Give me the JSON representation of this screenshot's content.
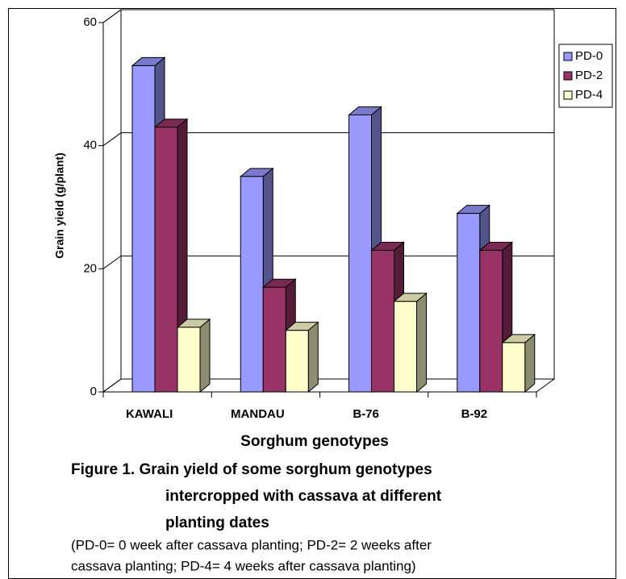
{
  "chart_data": {
    "type": "bar3d",
    "y_label": "Grain yield (g/plant)",
    "x_label": "Sorghum genotypes",
    "categories": [
      "KAWALI",
      "MANDAU",
      "B-76",
      "B-92"
    ],
    "series": [
      {
        "name": "PD-0",
        "color": "#9999ff",
        "values": [
          53,
          35,
          45,
          29
        ]
      },
      {
        "name": "PD-2",
        "color": "#993366",
        "values": [
          43,
          17,
          23,
          23
        ]
      },
      {
        "name": "PD-4",
        "color": "#ffffcc",
        "values": [
          10.5,
          10,
          14.7,
          8
        ]
      }
    ],
    "ylim": [
      0,
      60
    ],
    "yticks": [
      0,
      20,
      40,
      60
    ],
    "grid": true,
    "legend": "right",
    "caption": [
      "Figure 1.  Grain yield of some sorghum genotypes",
      "intercropped with cassava at different",
      "planting dates"
    ],
    "note": [
      "(PD-0= 0 week after cassava planting; PD-2= 2 weeks after",
      "cassava planting; PD-4= 4 weeks after cassava planting)"
    ]
  }
}
